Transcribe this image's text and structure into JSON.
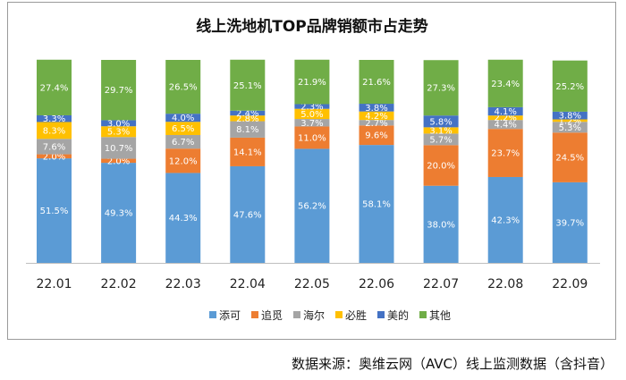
{
  "chart_data": {
    "type": "bar",
    "stacked": true,
    "percent_stacked": true,
    "title": "线上洗地机TOP品牌销额市占走势",
    "categories": [
      "22.01",
      "22.02",
      "22.03",
      "22.04",
      "22.05",
      "22.06",
      "22.07",
      "22.08",
      "22.09"
    ],
    "series": [
      {
        "name": "添可",
        "color": "#5B9BD5",
        "values": [
          51.5,
          49.3,
          44.3,
          47.6,
          56.2,
          58.1,
          38.0,
          42.3,
          39.7
        ],
        "labels": [
          "51.5%",
          "49.3%",
          "44.3%",
          "47.6%",
          "56.2%",
          "58.1%",
          "38.0%",
          "42.3%",
          "39.7%"
        ]
      },
      {
        "name": "追觅",
        "color": "#ED7D31",
        "values": [
          2.0,
          2.0,
          12.0,
          14.1,
          11.0,
          9.6,
          20.0,
          23.7,
          24.5
        ],
        "labels": [
          "2.0%",
          "2.0%",
          "12.0%",
          "14.1%",
          "11.0%",
          "9.6%",
          "20.0%",
          "23.7%",
          "24.5%"
        ]
      },
      {
        "name": "海尔",
        "color": "#A5A5A5",
        "values": [
          7.6,
          10.7,
          6.7,
          8.1,
          3.7,
          2.7,
          5.7,
          4.4,
          5.3
        ],
        "labels": [
          "7.6%",
          "10.7%",
          "6.7%",
          "8.1%",
          "3.7%",
          "2.7%",
          "5.7%",
          "4.4%",
          "5.3%"
        ]
      },
      {
        "name": "必胜",
        "color": "#FFC000",
        "values": [
          8.3,
          5.3,
          6.5,
          2.8,
          5.0,
          4.2,
          3.1,
          2.2,
          1.2
        ],
        "labels": [
          "8.3%",
          "5.3%",
          "6.5%",
          "2.8%",
          "5.0%",
          "4.2%",
          "3.1%",
          "2.2%",
          "1.2%"
        ]
      },
      {
        "name": "美的",
        "color": "#4472C4",
        "values": [
          3.3,
          3.0,
          4.0,
          2.4,
          2.3,
          3.8,
          5.8,
          4.1,
          3.8
        ],
        "labels": [
          "3.3%",
          "3.0%",
          "4.0%",
          "2.4%",
          "2.3%",
          "3.8%",
          "5.8%",
          "4.1%",
          "3.8%"
        ]
      },
      {
        "name": "其他",
        "color": "#70AD47",
        "values": [
          27.4,
          29.7,
          26.5,
          25.1,
          21.9,
          21.6,
          27.3,
          23.4,
          25.2
        ],
        "labels": [
          "27.4%",
          "29.7%",
          "26.5%",
          "25.1%",
          "21.9%",
          "21.6%",
          "27.3%",
          "23.4%",
          "25.2%"
        ]
      }
    ],
    "ylim": [
      0,
      100
    ],
    "xlabel": "",
    "ylabel": "",
    "grid": false,
    "legend_position": "bottom"
  },
  "source_text": "数据来源：奥维云网（AVC）线上监测数据（含抖音）"
}
